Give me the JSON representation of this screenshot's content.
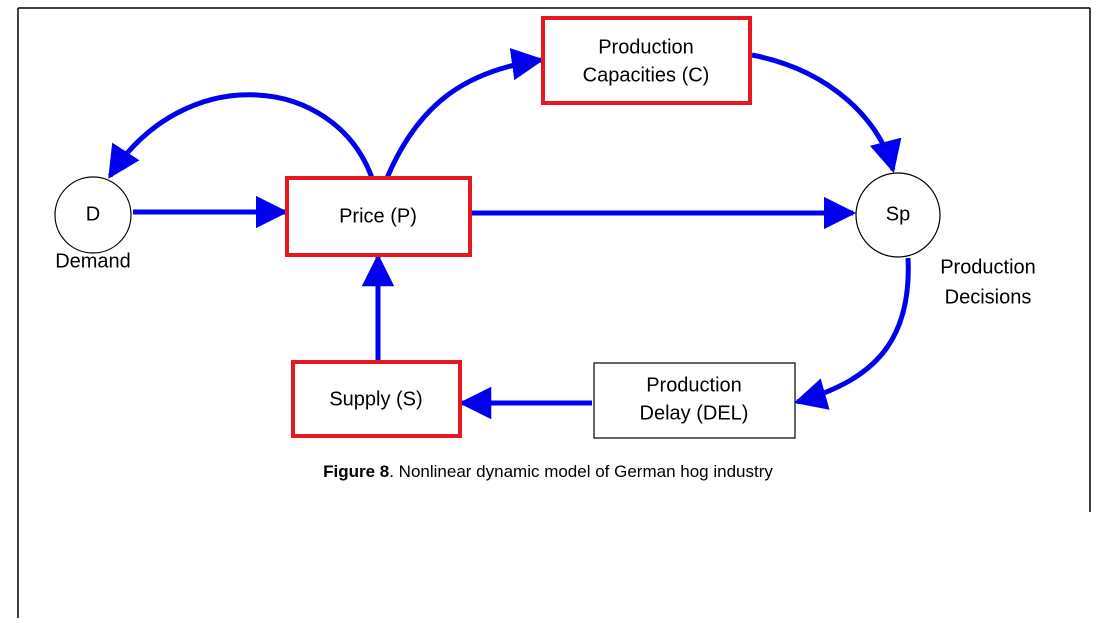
{
  "nodes": [
    {
      "label": "D",
      "caption": "Demand"
    },
    {
      "label": [
        "Price (P)"
      ]
    },
    {
      "label": [
        "Production",
        "Capacities (C)"
      ]
    },
    {
      "label": "Sp",
      "caption": [
        "Production",
        "Decisions"
      ]
    },
    {
      "label": [
        "Supply (S)"
      ]
    },
    {
      "label": [
        "Production",
        "Delay (DEL)"
      ]
    }
  ],
  "caption": {
    "bold": "Figure 8",
    "text": ". Nonlinear dynamic model of German hog industry"
  }
}
